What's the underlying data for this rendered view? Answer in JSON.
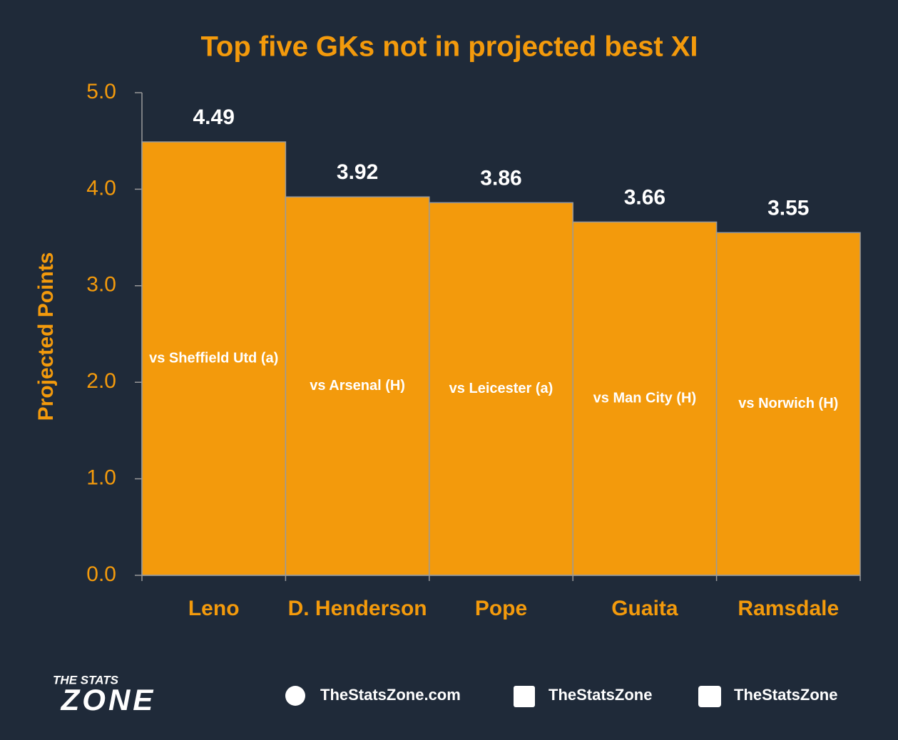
{
  "chart_data": {
    "type": "bar",
    "title": "Top five GKs not in projected best XI",
    "y_label": "Projected Points",
    "categories": [
      "Leno",
      "D. Henderson",
      "Pope",
      "Guaita",
      "Ramsdale"
    ],
    "values": [
      4.49,
      3.92,
      3.86,
      3.66,
      3.55
    ],
    "bar_labels": [
      "vs Sheffield Utd (a)",
      "vs Arsenal (H)",
      "vs Leicester (a)",
      "vs Man City (H)",
      "vs Norwich (H)"
    ],
    "color": "#f39a0c",
    "ylim": [
      0,
      5
    ],
    "yticks": [
      {
        "value": 0,
        "label": "0.0"
      },
      {
        "value": 1,
        "label": "1.0"
      },
      {
        "value": 2,
        "label": "2.0"
      },
      {
        "value": 3,
        "label": "3.0"
      },
      {
        "value": 4,
        "label": "4.0"
      },
      {
        "value": 5,
        "label": "5.0"
      }
    ],
    "grid": false
  },
  "footer": {
    "logo_top": "THE STATS",
    "logo_bottom": "ZONE",
    "website": "TheStatsZone.com",
    "facebook": "TheStatsZone",
    "twitter": "TheStatsZone"
  }
}
